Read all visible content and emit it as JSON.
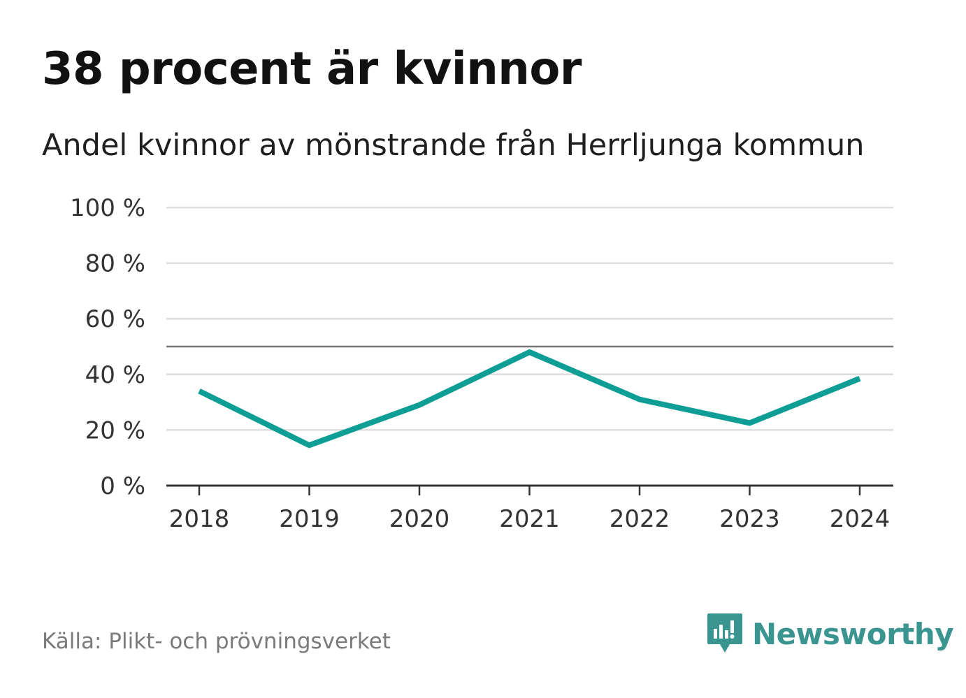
{
  "chart_data": {
    "type": "line",
    "title": "38 procent är kvinnor",
    "subtitle": "Andel kvinnor av mönstrande från Herrljunga kommun",
    "categories": [
      "2018",
      "2019",
      "2020",
      "2021",
      "2022",
      "2023",
      "2024"
    ],
    "series": [
      {
        "name": "Andel kvinnor",
        "values": [
          34,
          14.5,
          29,
          48,
          31,
          22.5,
          38.5
        ]
      }
    ],
    "yticks": [
      0,
      20,
      40,
      60,
      80,
      100
    ],
    "ytick_labels": [
      "0 %",
      "20 %",
      "40 %",
      "60 %",
      "80 %",
      "100 %"
    ],
    "ylim": [
      0,
      100
    ],
    "reference_line": 50,
    "grid": true,
    "colors": {
      "line": "#0f9e96",
      "grid": "#dddddd",
      "reference": "#777777",
      "axis": "#333333"
    }
  },
  "footer": {
    "source": "Källa: Plikt- och prövningsverket",
    "brand": "Newsworthy",
    "brand_color": "#3a9590",
    "brand_icon": "newsworthy-logo-icon"
  }
}
